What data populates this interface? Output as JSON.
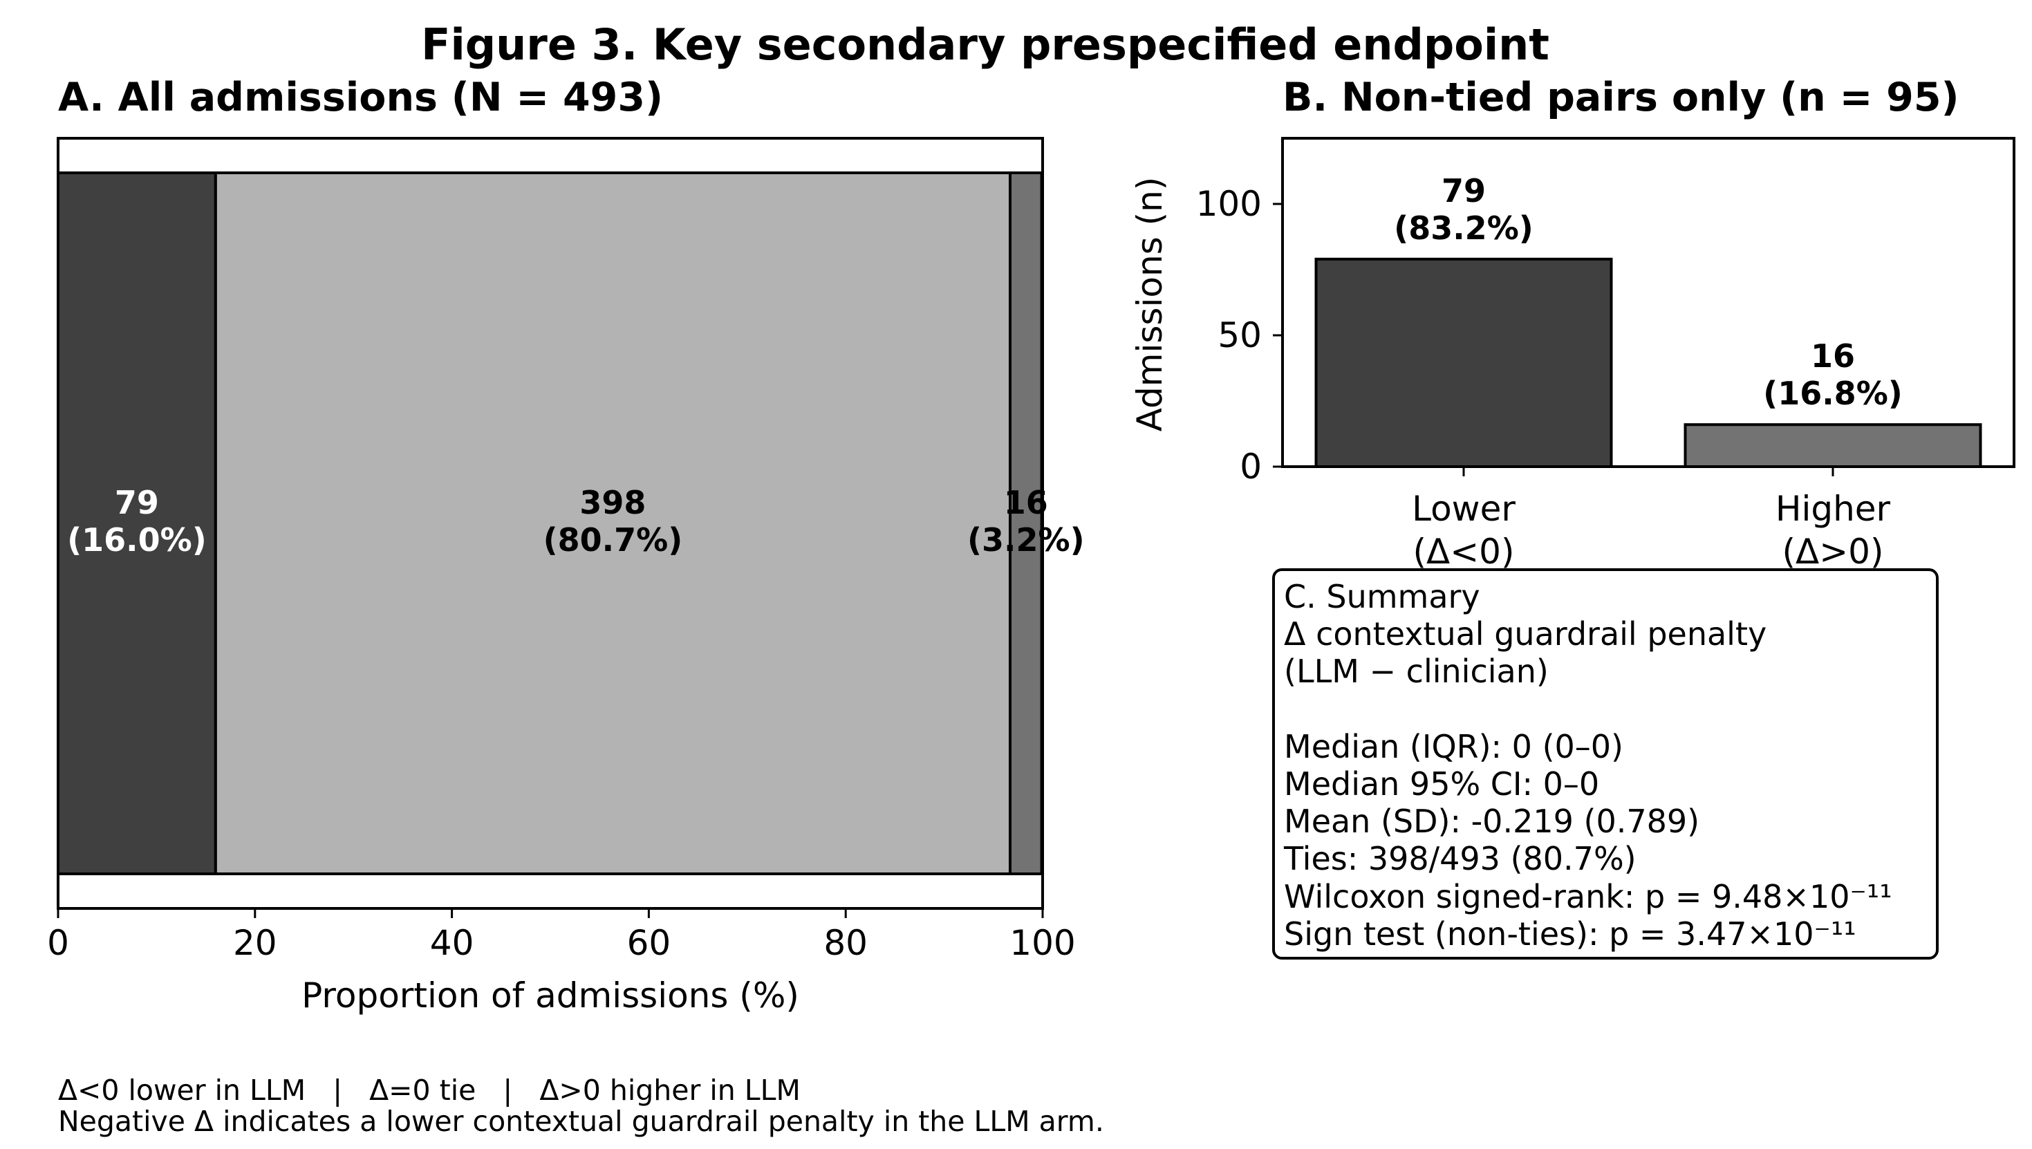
{
  "figure_title": "Figure 3. Key secondary prespecified endpoint",
  "colors": {
    "lower": "#404040",
    "tie": "#b3b3b3",
    "higher": "#737373"
  },
  "chart_data": [
    {
      "type": "bar",
      "orientation": "horizontal-stacked",
      "title": "A. All admissions (N = 493)",
      "xlabel": "Proportion of admissions (%)",
      "xlim": [
        0,
        100
      ],
      "xticks": [
        0,
        20,
        40,
        60,
        80,
        100
      ],
      "segments": [
        {
          "key": "lower",
          "count": 79,
          "percent": 16.0,
          "label_count": "79",
          "label_pct": "(16.0%)",
          "label_color": "#ffffff"
        },
        {
          "key": "tie",
          "count": 398,
          "percent": 80.7,
          "label_count": "398",
          "label_pct": "(80.7%)",
          "label_color": "#000000"
        },
        {
          "key": "higher",
          "count": 16,
          "percent": 3.2,
          "label_count": "16",
          "label_pct": "(3.2%)",
          "label_color": "#000000"
        }
      ]
    },
    {
      "type": "bar",
      "title": "B. Non-tied pairs only (n = 95)",
      "ylabel": "Admissions (n)",
      "ylim": [
        0,
        125
      ],
      "yticks": [
        0,
        50,
        100
      ],
      "categories": [
        "Lower\n(Δ<0)",
        "Higher\n(Δ>0)"
      ],
      "values": [
        79,
        16
      ],
      "value_labels": [
        "79",
        "16"
      ],
      "pct_labels": [
        "(83.2%)",
        "(16.8%)"
      ],
      "bar_keys": [
        "lower",
        "higher"
      ]
    }
  ],
  "summary": {
    "lines": [
      "C. Summary",
      "Δ contextual guardrail penalty",
      "(LLM − clinician)",
      "",
      "Median (IQR): 0 (0–0)",
      "Median 95% CI: 0–0",
      "Mean (SD): -0.219 (0.789)",
      "Ties: 398/493 (80.7%)",
      "Wilcoxon signed-rank: p = 9.48×10⁻¹¹",
      "Sign test (non-ties): p = 3.47×10⁻¹¹"
    ]
  },
  "footnotes": {
    "legend_line": "Δ<0 lower in LLM   |   Δ=0 tie   |   Δ>0 higher in LLM",
    "note_line": "Negative Δ indicates a lower contextual guardrail penalty in the LLM arm."
  }
}
